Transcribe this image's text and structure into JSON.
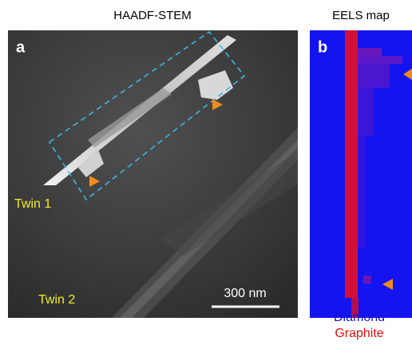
{
  "panels": [
    {
      "title": "HAADF-STEM",
      "letter": "a",
      "labels": [
        "Twin 1",
        "Twin 2"
      ],
      "scale_bar": "300 nm"
    },
    {
      "title": "EELS map",
      "letter": "b",
      "legend": [
        "Diamond",
        "Graphite"
      ]
    }
  ]
}
